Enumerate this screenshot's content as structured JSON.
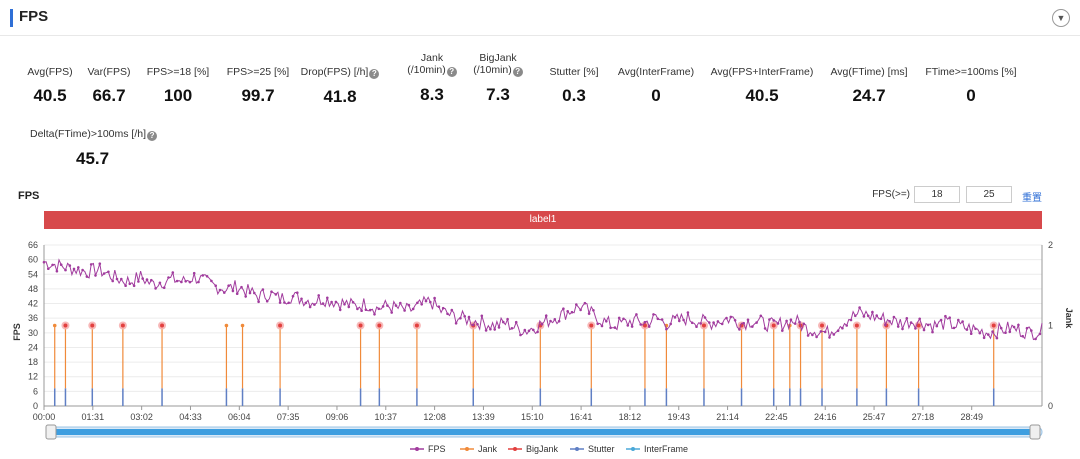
{
  "header": {
    "title": "FPS",
    "collapse_icon": "chevron-down-icon"
  },
  "metrics": [
    {
      "label": "Avg(FPS)",
      "value": "40.5",
      "help": false
    },
    {
      "label": "Var(FPS)",
      "value": "66.7",
      "help": false
    },
    {
      "label": "FPS>=18 [%]",
      "value": "100",
      "help": false
    },
    {
      "label": "FPS>=25 [%]",
      "value": "99.7",
      "help": false
    },
    {
      "label": "Drop(FPS) [/h]",
      "value": "41.8",
      "help": true
    },
    {
      "label": "Jank",
      "label2": "(/10min)",
      "value": "8.3",
      "help": true
    },
    {
      "label": "BigJank",
      "label2": "(/10min)",
      "value": "7.3",
      "help": true
    },
    {
      "label": "Stutter [%]",
      "value": "0.3",
      "help": false
    },
    {
      "label": "Avg(InterFrame)",
      "value": "0",
      "help": false
    },
    {
      "label": "Avg(FPS+InterFrame)",
      "value": "40.5",
      "help": false
    },
    {
      "label": "Avg(FTime) [ms]",
      "value": "24.7",
      "help": false
    },
    {
      "label": "FTime>=100ms [%]",
      "value": "0",
      "help": false
    },
    {
      "label": "Delta(FTime)>100ms [/h]",
      "value": "45.7",
      "help": true
    }
  ],
  "chart_section": {
    "title": "FPS",
    "threshold_label": "FPS(>=)",
    "threshold_low": "18",
    "threshold_high": "25",
    "reset_label": "重置",
    "band_label": "label1"
  },
  "chart_data": {
    "type": "line",
    "ylabel": "FPS",
    "y2label": "Jank",
    "ylim": [
      0,
      66
    ],
    "yticks": [
      "0",
      "6",
      "12",
      "18",
      "24",
      "30",
      "36",
      "42",
      "48",
      "54",
      "60",
      "66"
    ],
    "y2lim": [
      0,
      2
    ],
    "y2ticks": [
      "0",
      "1",
      "2"
    ],
    "xlim_seconds": [
      0,
      1860
    ],
    "xticks": [
      "00:00",
      "01:31",
      "03:02",
      "04:33",
      "06:04",
      "07:35",
      "09:06",
      "10:37",
      "12:08",
      "13:39",
      "15:10",
      "16:41",
      "18:12",
      "19:43",
      "21:14",
      "22:45",
      "24:16",
      "25:47",
      "27:18",
      "28:49"
    ],
    "legend": [
      "FPS",
      "Jank",
      "BigJank",
      "Stutter",
      "InterFrame"
    ],
    "legend_position": "bottom",
    "colors": {
      "fps": "#a13c9e",
      "jank": "#f08a3a",
      "bigjank": "#e2403f",
      "stutter": "#5f7fc4",
      "interframe": "#4aa8d8",
      "band": "#d7494b",
      "scroll": "#3d9ee0"
    },
    "fps_series_mmss": [
      [
        "00:00",
        59
      ],
      [
        "00:20",
        58
      ],
      [
        "00:40",
        57
      ],
      [
        "01:00",
        56
      ],
      [
        "01:20",
        55
      ],
      [
        "01:40",
        56
      ],
      [
        "02:00",
        54
      ],
      [
        "02:20",
        52
      ],
      [
        "02:40",
        51
      ],
      [
        "03:00",
        53
      ],
      [
        "03:20",
        50
      ],
      [
        "03:40",
        51
      ],
      [
        "04:00",
        52
      ],
      [
        "04:20",
        51
      ],
      [
        "04:40",
        53
      ],
      [
        "05:00",
        51
      ],
      [
        "05:20",
        49
      ],
      [
        "05:40",
        48
      ],
      [
        "06:00",
        49
      ],
      [
        "06:20",
        47
      ],
      [
        "06:40",
        45
      ],
      [
        "07:00",
        46
      ],
      [
        "07:20",
        44
      ],
      [
        "07:40",
        45
      ],
      [
        "08:00",
        44
      ],
      [
        "08:20",
        43
      ],
      [
        "08:40",
        44
      ],
      [
        "09:00",
        43
      ],
      [
        "09:20",
        42
      ],
      [
        "09:40",
        41
      ],
      [
        "10:00",
        42
      ],
      [
        "10:20",
        40
      ],
      [
        "10:40",
        41
      ],
      [
        "11:00",
        40
      ],
      [
        "11:20",
        39
      ],
      [
        "11:40",
        41
      ],
      [
        "12:00",
        43
      ],
      [
        "12:20",
        39
      ],
      [
        "12:40",
        37
      ],
      [
        "13:00",
        36
      ],
      [
        "13:20",
        35
      ],
      [
        "13:40",
        34
      ],
      [
        "14:00",
        33
      ],
      [
        "14:20",
        34
      ],
      [
        "14:40",
        32
      ],
      [
        "15:00",
        31
      ],
      [
        "15:20",
        33
      ],
      [
        "15:40",
        35
      ],
      [
        "16:00",
        37
      ],
      [
        "16:20",
        39
      ],
      [
        "16:40",
        41
      ],
      [
        "17:00",
        38
      ],
      [
        "17:20",
        35
      ],
      [
        "17:40",
        33
      ],
      [
        "18:00",
        34
      ],
      [
        "18:20",
        35
      ],
      [
        "18:40",
        34
      ],
      [
        "19:00",
        36
      ],
      [
        "19:20",
        34
      ],
      [
        "19:40",
        35
      ],
      [
        "20:00",
        36
      ],
      [
        "20:20",
        35
      ],
      [
        "20:40",
        34
      ],
      [
        "21:00",
        35
      ],
      [
        "21:20",
        36
      ],
      [
        "21:40",
        34
      ],
      [
        "22:00",
        35
      ],
      [
        "22:20",
        34
      ],
      [
        "22:40",
        33
      ],
      [
        "23:00",
        34
      ],
      [
        "23:20",
        35
      ],
      [
        "23:40",
        32
      ],
      [
        "24:00",
        31
      ],
      [
        "24:20",
        30
      ],
      [
        "24:40",
        33
      ],
      [
        "25:00",
        36
      ],
      [
        "25:20",
        38
      ],
      [
        "25:40",
        37
      ],
      [
        "26:00",
        36
      ],
      [
        "26:20",
        35
      ],
      [
        "26:40",
        34
      ],
      [
        "27:00",
        35
      ],
      [
        "27:20",
        34
      ],
      [
        "27:40",
        33
      ],
      [
        "28:00",
        34
      ],
      [
        "28:20",
        33
      ],
      [
        "28:40",
        32
      ],
      [
        "29:00",
        31
      ],
      [
        "29:20",
        30
      ],
      [
        "29:40",
        31
      ],
      [
        "30:00",
        32
      ],
      [
        "30:20",
        31
      ],
      [
        "30:40",
        30
      ],
      [
        "31:00",
        31
      ]
    ],
    "jank_events_mmss": [
      "00:20",
      "00:40",
      "01:30",
      "02:27",
      "03:40",
      "05:40",
      "06:10",
      "07:20",
      "09:50",
      "10:25",
      "11:35",
      "13:20",
      "15:25",
      "17:00",
      "18:40",
      "19:20",
      "20:30",
      "21:40",
      "22:40",
      "23:10",
      "23:30",
      "24:10",
      "25:15",
      "26:10",
      "27:10",
      "29:30"
    ],
    "bigjank_marker_mmss": [
      "00:40",
      "01:30",
      "02:27",
      "03:40",
      "07:20",
      "09:50",
      "10:25",
      "11:35",
      "13:20",
      "15:25",
      "17:00",
      "18:40",
      "20:30",
      "21:40",
      "22:40",
      "23:30",
      "24:10",
      "25:15",
      "26:10",
      "27:10",
      "29:30"
    ],
    "stutter_events_mmss": [
      "00:20",
      "00:40",
      "01:30",
      "02:27",
      "03:40",
      "05:40",
      "06:10",
      "07:20",
      "09:50",
      "10:25",
      "11:35",
      "13:20",
      "15:25",
      "17:00",
      "18:40",
      "19:20",
      "20:30",
      "21:40",
      "22:40",
      "23:10",
      "23:30",
      "24:10",
      "25:15",
      "26:10",
      "27:10",
      "29:30"
    ]
  }
}
